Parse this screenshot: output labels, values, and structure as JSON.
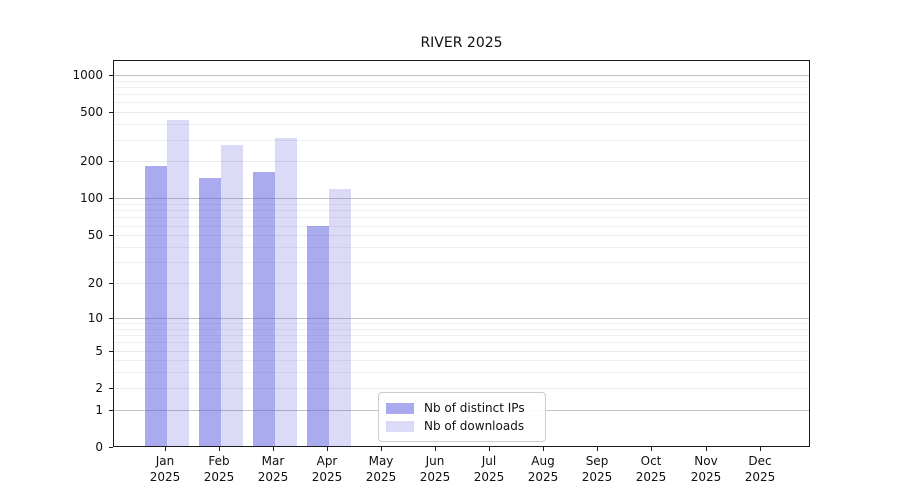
{
  "chart_data": {
    "type": "bar",
    "title": "RIVER 2025",
    "year_label": "2025",
    "months": [
      "Jan",
      "Feb",
      "Mar",
      "Apr",
      "May",
      "Jun",
      "Jul",
      "Aug",
      "Sep",
      "Oct",
      "Nov",
      "Dec"
    ],
    "series": [
      {
        "name": "Nb of distinct IPs",
        "fill": "rgba(85,85,224,0.5)",
        "values": [
          181,
          143,
          160,
          58,
          0,
          0,
          0,
          0,
          0,
          0,
          0,
          0
        ]
      },
      {
        "name": "Nb of downloads",
        "fill": "rgba(85,85,224,0.21)",
        "values": [
          427,
          266,
          303,
          118,
          0,
          0,
          0,
          0,
          0,
          0,
          0,
          0
        ]
      }
    ],
    "y_scale": "log1p",
    "ylim": [
      0,
      1273
    ],
    "y_ticks": [
      0,
      1,
      2,
      5,
      10,
      20,
      50,
      100,
      200,
      500,
      1000
    ],
    "y_major_ticks": [
      1,
      10,
      100,
      1000
    ],
    "grid": "horizontal",
    "legend_position": "inside-lower-center",
    "colors": {
      "major_grid": "#c3c3c3",
      "minor_grid": "#efefef",
      "spine": "#1a1a1a",
      "text": "#111111",
      "bar_base": "#5555e0"
    }
  }
}
